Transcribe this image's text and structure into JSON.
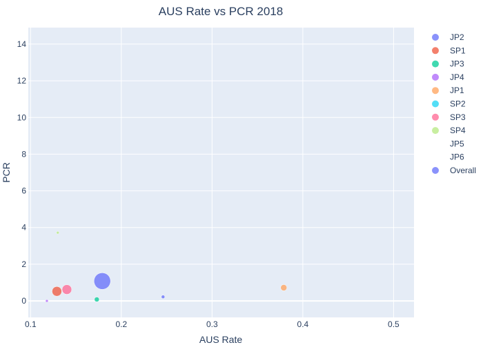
{
  "chart_data": {
    "type": "scatter",
    "title": "AUS Rate vs PCR 2018",
    "xlabel": "AUS Rate",
    "ylabel": "PCR",
    "xlim": [
      0.0975,
      0.5225
    ],
    "ylim": [
      -0.9,
      14.9
    ],
    "xticks": [
      0.1,
      0.2,
      0.3,
      0.4,
      0.5
    ],
    "xtick_labels": [
      "0.1",
      "0.2",
      "0.3",
      "0.4",
      "0.5"
    ],
    "yticks": [
      0,
      2,
      4,
      6,
      8,
      10,
      12,
      14
    ],
    "ytick_labels": [
      "0",
      "2",
      "4",
      "6",
      "8",
      "10",
      "12",
      "14"
    ],
    "grid": true,
    "legend_position": "right",
    "series": [
      {
        "name": "JP2",
        "color": "#636efa",
        "points": [
          {
            "x": 0.246,
            "y": 0.22,
            "size": 5
          }
        ]
      },
      {
        "name": "SP1",
        "color": "#EF553B",
        "points": [
          {
            "x": 0.129,
            "y": 0.52,
            "size": 14
          }
        ]
      },
      {
        "name": "JP3",
        "color": "#00cc96",
        "points": [
          {
            "x": 0.173,
            "y": 0.08,
            "size": 7
          }
        ]
      },
      {
        "name": "JP4",
        "color": "#ab63fa",
        "points": [
          {
            "x": 0.118,
            "y": 0.0,
            "size": 4
          }
        ]
      },
      {
        "name": "JP1",
        "color": "#FFA15A",
        "points": [
          {
            "x": 0.379,
            "y": 0.72,
            "size": 9
          }
        ]
      },
      {
        "name": "SP2",
        "color": "#19d3f3",
        "points": []
      },
      {
        "name": "SP3",
        "color": "#FF6692",
        "points": [
          {
            "x": 0.14,
            "y": 0.62,
            "size": 14
          }
        ]
      },
      {
        "name": "SP4",
        "color": "#B6E880",
        "points": [
          {
            "x": 0.13,
            "y": 3.72,
            "size": 4
          }
        ]
      },
      {
        "name": "JP5",
        "color": "none",
        "points": []
      },
      {
        "name": "JP6",
        "color": "none",
        "points": []
      },
      {
        "name": "Overall",
        "color": "#636efa",
        "points": [
          {
            "x": 0.179,
            "y": 1.08,
            "size": 24
          }
        ]
      }
    ]
  }
}
